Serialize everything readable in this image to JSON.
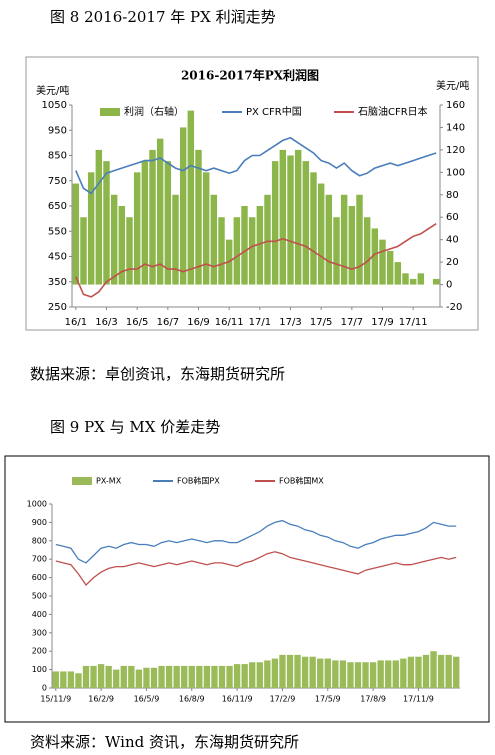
{
  "figures": [
    {
      "caption": "图 8   2016-2017 年  PX 利润走势",
      "source": "数据来源：卓创资讯，东海期货研究所"
    },
    {
      "caption": "图 9     PX 与 MX 价差走势",
      "source": "资料来源：Wind 资讯，东海期货研究所"
    }
  ],
  "chart_data": [
    {
      "type": "combo",
      "title": "2016-2017年PX利润图",
      "y_label": "美元/吨",
      "y2_label": "美元/吨",
      "categories": [
        "16/1",
        null,
        null,
        null,
        "16/3",
        null,
        null,
        null,
        "16/5",
        null,
        null,
        null,
        "16/7",
        null,
        null,
        null,
        "16/9",
        null,
        null,
        null,
        "16/11",
        null,
        null,
        null,
        "17/1",
        null,
        null,
        null,
        "17/3",
        null,
        null,
        null,
        "17/5",
        null,
        null,
        null,
        "17/7",
        null,
        null,
        null,
        "17/9",
        null,
        null,
        null,
        "17/11",
        null,
        null,
        null
      ],
      "ylim": [
        250,
        1050
      ],
      "yticks": [
        250,
        350,
        450,
        550,
        650,
        750,
        850,
        950,
        1050
      ],
      "y2lim": [
        -20,
        160
      ],
      "y2ticks": [
        -20,
        0,
        20,
        40,
        60,
        80,
        100,
        120,
        140,
        160
      ],
      "series": [
        {
          "name": "利润（右轴）",
          "type": "area",
          "axis": "y2",
          "color": "#8cb54a",
          "values": [
            90,
            60,
            100,
            120,
            110,
            80,
            70,
            60,
            100,
            110,
            120,
            130,
            110,
            80,
            140,
            155,
            120,
            100,
            80,
            60,
            40,
            60,
            70,
            60,
            70,
            80,
            110,
            120,
            115,
            120,
            110,
            100,
            90,
            80,
            60,
            80,
            70,
            80,
            60,
            50,
            40,
            30,
            20,
            10,
            5,
            10,
            0,
            5
          ]
        },
        {
          "name": "PX CFR中国",
          "type": "line",
          "color": "#4a7ebb",
          "values": [
            790,
            720,
            700,
            740,
            780,
            790,
            800,
            810,
            820,
            830,
            830,
            840,
            820,
            800,
            790,
            810,
            800,
            790,
            800,
            790,
            780,
            790,
            830,
            850,
            850,
            870,
            890,
            910,
            920,
            900,
            880,
            860,
            830,
            820,
            800,
            820,
            790,
            770,
            780,
            800,
            810,
            820,
            810,
            820,
            830,
            840,
            850,
            860
          ]
        },
        {
          "name": "石脑油CFR日本",
          "type": "line",
          "color": "#c0504d",
          "values": [
            370,
            300,
            290,
            310,
            350,
            370,
            390,
            400,
            400,
            420,
            410,
            420,
            400,
            400,
            390,
            400,
            410,
            420,
            410,
            420,
            430,
            450,
            470,
            490,
            500,
            510,
            510,
            520,
            510,
            500,
            490,
            470,
            450,
            430,
            420,
            410,
            400,
            410,
            430,
            460,
            470,
            480,
            490,
            510,
            530,
            540,
            560,
            580
          ]
        }
      ]
    },
    {
      "type": "combo",
      "categories": [
        "15/11/9",
        null,
        null,
        null,
        null,
        null,
        "16/2/9",
        null,
        null,
        null,
        null,
        null,
        "16/5/9",
        null,
        null,
        null,
        null,
        null,
        "16/8/9",
        null,
        null,
        null,
        null,
        null,
        "16/11/9",
        null,
        null,
        null,
        null,
        null,
        "17/2/9",
        null,
        null,
        null,
        null,
        null,
        "17/5/9",
        null,
        null,
        null,
        null,
        null,
        "17/8/9",
        null,
        null,
        null,
        null,
        null,
        "17/11/9",
        null,
        null,
        null,
        null,
        null
      ],
      "ylim": [
        0,
        1000
      ],
      "yticks": [
        0,
        100,
        200,
        300,
        400,
        500,
        600,
        700,
        800,
        900,
        1000
      ],
      "series": [
        {
          "name": "PX-MX",
          "type": "bar",
          "color": "#9bbb59",
          "values": [
            90,
            90,
            90,
            80,
            120,
            120,
            130,
            120,
            100,
            120,
            120,
            100,
            110,
            110,
            120,
            120,
            120,
            120,
            120,
            120,
            120,
            120,
            120,
            120,
            130,
            130,
            140,
            140,
            150,
            160,
            180,
            180,
            180,
            170,
            170,
            160,
            160,
            150,
            150,
            140,
            140,
            140,
            140,
            150,
            150,
            150,
            160,
            170,
            170,
            180,
            200,
            180,
            180,
            170
          ]
        },
        {
          "name": "FOB韩国PX",
          "type": "line",
          "color": "#4a7ebb",
          "values": [
            780,
            770,
            760,
            700,
            680,
            720,
            760,
            770,
            760,
            780,
            790,
            780,
            780,
            770,
            790,
            800,
            790,
            800,
            810,
            800,
            790,
            800,
            800,
            790,
            790,
            810,
            830,
            850,
            880,
            900,
            910,
            890,
            880,
            860,
            850,
            830,
            820,
            800,
            790,
            770,
            760,
            780,
            790,
            810,
            820,
            830,
            830,
            840,
            850,
            870,
            900,
            890,
            880,
            880
          ]
        },
        {
          "name": "FOB韩国MX",
          "type": "line",
          "color": "#c0504d",
          "values": [
            690,
            680,
            670,
            620,
            560,
            600,
            630,
            650,
            660,
            660,
            670,
            680,
            670,
            660,
            670,
            680,
            670,
            680,
            690,
            680,
            670,
            680,
            680,
            670,
            660,
            680,
            690,
            710,
            730,
            740,
            730,
            710,
            700,
            690,
            680,
            670,
            660,
            650,
            640,
            630,
            620,
            640,
            650,
            660,
            670,
            680,
            670,
            670,
            680,
            690,
            700,
            710,
            700,
            710
          ]
        }
      ]
    }
  ]
}
